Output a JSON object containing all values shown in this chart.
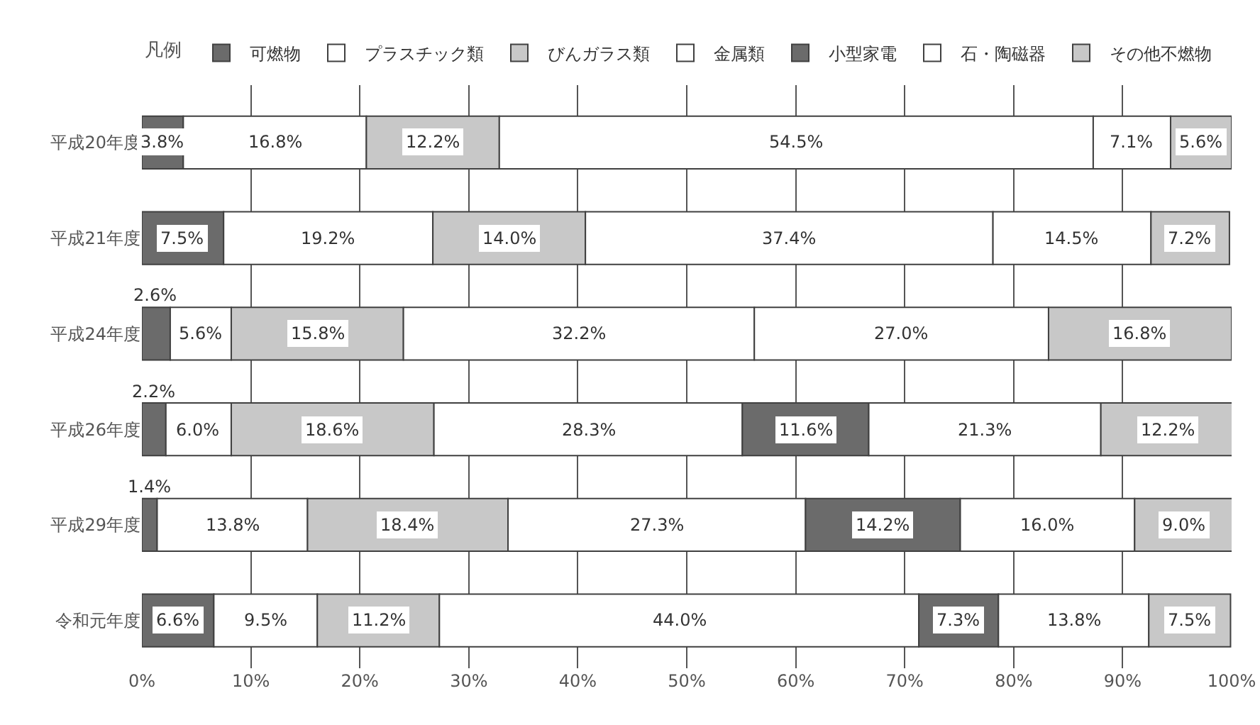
{
  "chart_data": {
    "type": "bar",
    "orientation": "horizontal",
    "stacked": true,
    "categories": [
      "平成20年度",
      "平成21年度",
      "平成24年度",
      "平成26年度",
      "平成29年度",
      "令和元年度"
    ],
    "series": [
      {
        "name": "可燃物",
        "color": "#6b6b6b",
        "values": [
          3.8,
          7.5,
          2.6,
          2.2,
          1.4,
          6.6
        ],
        "value_labels": [
          "3.8%",
          "7.5%",
          "2.6%",
          "2.2%",
          "1.4%",
          "6.6%"
        ]
      },
      {
        "name": "プラスチック類",
        "color": "#ffffff",
        "values": [
          16.8,
          19.2,
          5.6,
          6.0,
          13.8,
          9.5
        ],
        "value_labels": [
          "16.8%",
          "19.2%",
          "5.6%",
          "6.0%",
          "13.8%",
          "9.5%"
        ]
      },
      {
        "name": "びんガラス類",
        "color": "#c8c8c8",
        "values": [
          12.2,
          14.0,
          15.8,
          18.6,
          18.4,
          11.2
        ],
        "value_labels": [
          "12.2%",
          "14.0%",
          "15.8%",
          "18.6%",
          "18.4%",
          "11.2%"
        ]
      },
      {
        "name": "金属類",
        "color": "#ffffff",
        "values": [
          54.5,
          37.4,
          32.2,
          28.3,
          27.3,
          44.0
        ],
        "value_labels": [
          "54.5%",
          "37.4%",
          "32.2%",
          "28.3%",
          "27.3%",
          "44.0%"
        ]
      },
      {
        "name": "小型家電",
        "color": "#6b6b6b",
        "values": [
          null,
          null,
          null,
          11.6,
          14.2,
          7.3
        ],
        "value_labels": [
          null,
          null,
          null,
          "11.6%",
          "14.2%",
          "7.3%"
        ]
      },
      {
        "name": "石・陶磁器",
        "color": "#ffffff",
        "values": [
          7.1,
          14.5,
          27.0,
          21.3,
          16.0,
          13.8
        ],
        "value_labels": [
          "7.1%",
          "14.5%",
          "27.0%",
          "21.3%",
          "16.0%",
          "13.8%"
        ]
      },
      {
        "name": "その他不燃物",
        "color": "#c8c8c8",
        "values": [
          5.6,
          7.2,
          16.8,
          12.2,
          9.0,
          7.5
        ],
        "value_labels": [
          "5.6%",
          "7.2%",
          "16.8%",
          "12.2%",
          "9.0%",
          "7.5%"
        ]
      }
    ],
    "xlim": [
      0,
      100
    ],
    "xticks": [
      {
        "value": 0,
        "label": "0%"
      },
      {
        "value": 10,
        "label": "10%"
      },
      {
        "value": 20,
        "label": "20%"
      },
      {
        "value": 30,
        "label": "30%"
      },
      {
        "value": 40,
        "label": "40%"
      },
      {
        "value": 50,
        "label": "50%"
      },
      {
        "value": 60,
        "label": "60%"
      },
      {
        "value": 70,
        "label": "70%"
      },
      {
        "value": 80,
        "label": "80%"
      },
      {
        "value": 90,
        "label": "90%"
      },
      {
        "value": 100,
        "label": "100%"
      }
    ],
    "grid": "x",
    "legend": "top",
    "legend_title": "凡例"
  }
}
